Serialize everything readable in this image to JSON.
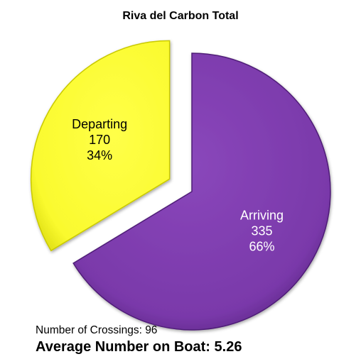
{
  "chart_data": {
    "type": "pie",
    "title": "Riva del Carbon Total",
    "slices": [
      {
        "name": "Departing",
        "value": 170,
        "percent_label": "34%",
        "color": "#ffff33",
        "exploded": true
      },
      {
        "name": "Arriving",
        "value": 335,
        "percent_label": "66%",
        "color": "#7d3cad",
        "exploded": false
      }
    ]
  },
  "footer": {
    "crossings": "Number of Crossings: 96",
    "average": "Average Number on Boat: 5.26"
  },
  "colors": {
    "departing_fill": "#ffff33",
    "departing_edge": "#c9c900",
    "arriving_fill": "#7d3cad",
    "arriving_edge": "#4f1f77",
    "slice_label_text_on_dark": "#ffffff",
    "slice_label_text_on_light": "#000000"
  }
}
